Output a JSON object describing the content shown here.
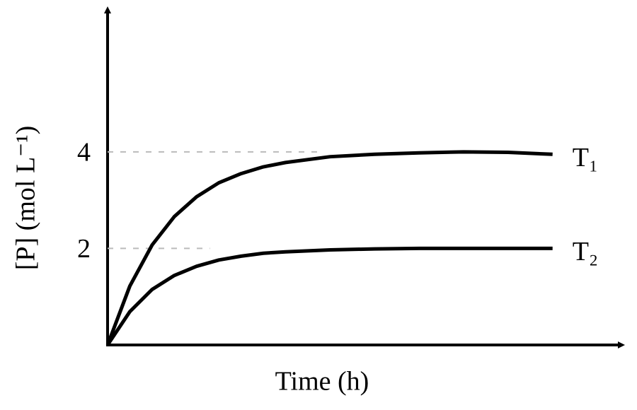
{
  "chart_data": {
    "type": "line",
    "x_label": "Time (h)",
    "y_label": "[P] (mol L⁻¹)",
    "x": [
      0,
      0.5,
      1,
      1.5,
      2,
      2.5,
      3,
      3.5,
      4,
      5,
      6,
      7,
      8,
      9,
      10
    ],
    "xlim": [
      0,
      11.5
    ],
    "ylim": [
      0,
      7
    ],
    "yticks": [
      2,
      4
    ],
    "grid": "dashed",
    "series": [
      {
        "name": "T₁",
        "color": "#000000",
        "values": [
          0,
          1.22,
          2.07,
          2.66,
          3.07,
          3.36,
          3.55,
          3.69,
          3.78,
          3.9,
          3.95,
          3.98,
          4.0,
          3.99,
          3.95
        ]
      },
      {
        "name": "T₂",
        "color": "#000000",
        "values": [
          0,
          0.69,
          1.15,
          1.44,
          1.63,
          1.76,
          1.84,
          1.9,
          1.93,
          1.97,
          1.99,
          2.0,
          2.0,
          2.0,
          2.0
        ]
      }
    ]
  }
}
